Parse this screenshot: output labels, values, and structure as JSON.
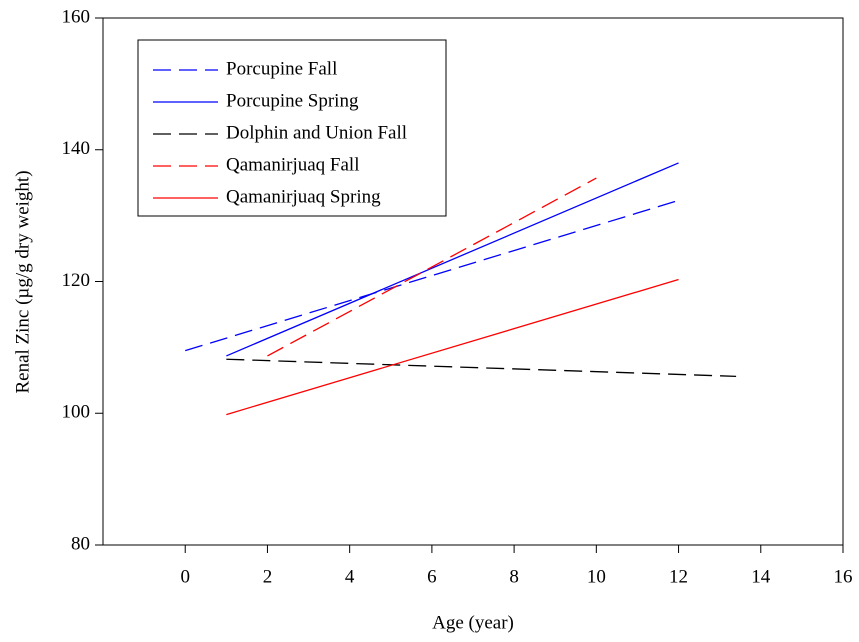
{
  "chart_data": {
    "type": "line",
    "x_label": "Age (year)",
    "y_label": "Renal Zinc (µg/g dry weight)",
    "xlim": [
      -2,
      16
    ],
    "xticks": [
      0,
      2,
      4,
      6,
      8,
      10,
      12,
      14,
      16
    ],
    "ylim": [
      80,
      160
    ],
    "yticks": [
      80,
      100,
      120,
      140,
      160
    ],
    "legend": "upper left",
    "series": [
      {
        "name": "Porcupine Fall",
        "color": "#0000ff",
        "line_style": "dashed",
        "x": [
          0,
          12
        ],
        "values": [
          109.5,
          132.3
        ]
      },
      {
        "name": "Porcupine Spring",
        "color": "#0000ff",
        "line_style": "solid",
        "x": [
          1,
          12
        ],
        "values": [
          108.7,
          138
        ]
      },
      {
        "name": "Dolphin and Union Fall",
        "color": "#000000",
        "line_style": "dashed",
        "x": [
          1,
          13.4
        ],
        "values": [
          108.2,
          105.6
        ]
      },
      {
        "name": "Qamanirjuaq Fall",
        "color": "#ff0000",
        "line_style": "dashed",
        "x": [
          2,
          10
        ],
        "values": [
          108.7,
          135.7
        ]
      },
      {
        "name": "Qamanirjuaq Spring",
        "color": "#ff0000",
        "line_style": "solid",
        "x": [
          1,
          12
        ],
        "values": [
          99.8,
          120.3
        ]
      }
    ]
  }
}
